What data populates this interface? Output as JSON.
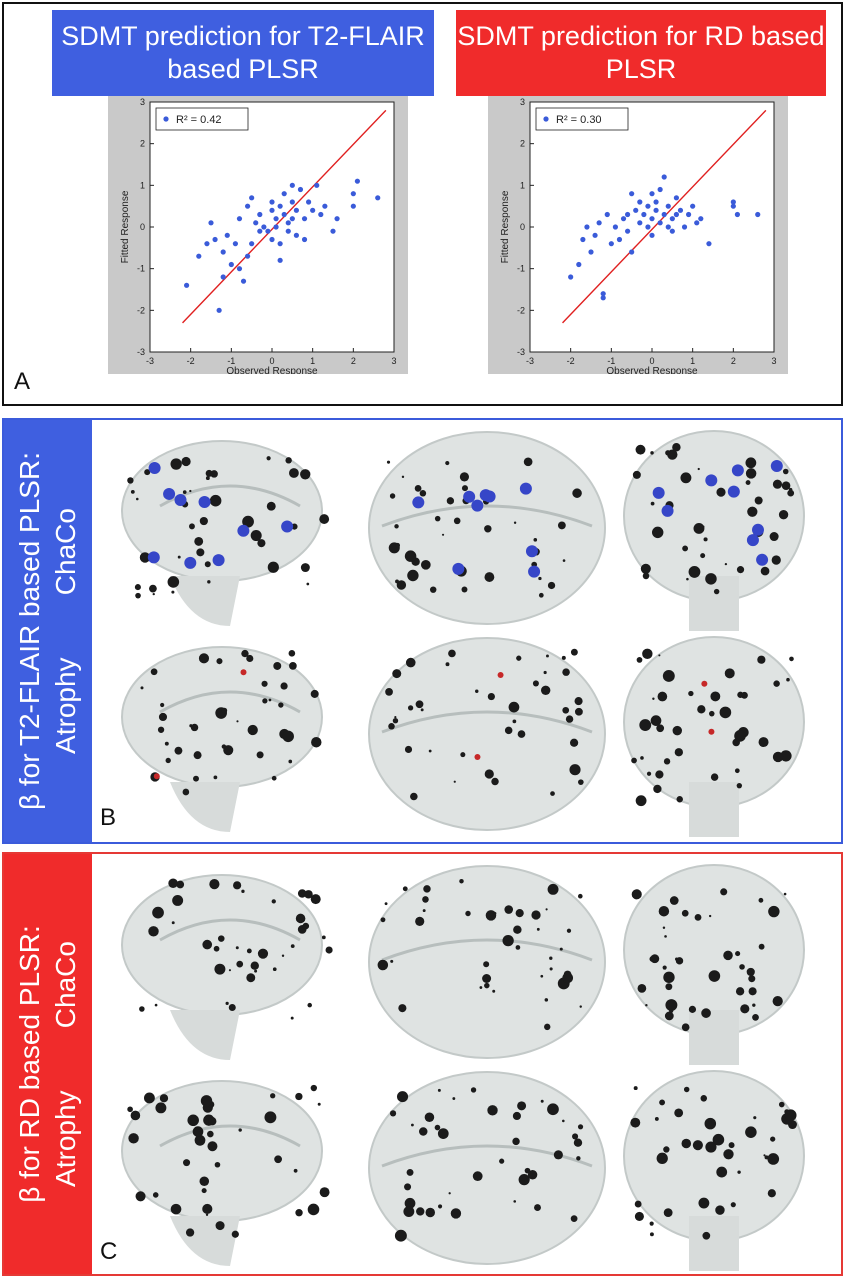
{
  "panel_a": {
    "letter": "A",
    "left_title": "SDMT prediction for T2-FLAIR based PLSR",
    "right_title": "SDMT prediction for RD based PLSR"
  },
  "panel_b": {
    "letter": "B",
    "side_label_line1": "β for T2-FLAIR based PLSR:",
    "side_label_line2": "Atrophy        ChaCo"
  },
  "panel_c": {
    "letter": "C",
    "side_label_line1": "β for RD based PLSR:",
    "side_label_line2": "Atrophy        ChaCo"
  },
  "chart_data": [
    {
      "type": "scatter",
      "title": "SDMT prediction for T2-FLAIR based PLSR",
      "xlabel": "Observed Response",
      "ylabel": "Fitted Response",
      "xlim": [
        -3,
        3
      ],
      "ylim": [
        -3,
        3
      ],
      "xticks": [
        -3,
        -2,
        -1,
        0,
        1,
        2,
        3
      ],
      "yticks": [
        -3,
        -2,
        -1,
        0,
        1,
        2,
        3
      ],
      "legend": "R² = 0.42",
      "legend_position": "top-left",
      "fit_line": {
        "x": [
          -2.2,
          2.8
        ],
        "y": [
          -2.3,
          2.8
        ],
        "color": "#e02020"
      },
      "point_color": "#3a5bd9",
      "points": [
        [
          -2.1,
          -1.4
        ],
        [
          -1.8,
          -0.7
        ],
        [
          -1.6,
          -0.4
        ],
        [
          -1.5,
          0.1
        ],
        [
          -1.4,
          -0.3
        ],
        [
          -1.3,
          -2.0
        ],
        [
          -1.2,
          -1.2
        ],
        [
          -1.2,
          -0.6
        ],
        [
          -1.1,
          -0.2
        ],
        [
          -1.0,
          -0.9
        ],
        [
          -0.9,
          -0.4
        ],
        [
          -0.8,
          0.2
        ],
        [
          -0.7,
          -1.3
        ],
        [
          -0.6,
          -0.7
        ],
        [
          -0.6,
          0.5
        ],
        [
          -0.5,
          0.7
        ],
        [
          -0.5,
          -0.4
        ],
        [
          -0.4,
          0.1
        ],
        [
          -0.3,
          -0.1
        ],
        [
          -0.3,
          0.3
        ],
        [
          -0.2,
          0.0
        ],
        [
          -0.1,
          -0.1
        ],
        [
          0.0,
          0.4
        ],
        [
          0.0,
          -0.3
        ],
        [
          0.0,
          0.6
        ],
        [
          0.1,
          0.2
        ],
        [
          0.1,
          0.0
        ],
        [
          0.2,
          0.5
        ],
        [
          0.2,
          -0.4
        ],
        [
          0.3,
          0.3
        ],
        [
          0.3,
          0.8
        ],
        [
          0.4,
          0.1
        ],
        [
          0.4,
          -0.1
        ],
        [
          0.5,
          0.6
        ],
        [
          0.5,
          1.0
        ],
        [
          0.5,
          0.2
        ],
        [
          0.6,
          0.4
        ],
        [
          0.7,
          0.9
        ],
        [
          0.8,
          0.2
        ],
        [
          0.8,
          -0.3
        ],
        [
          0.9,
          0.6
        ],
        [
          1.0,
          0.4
        ],
        [
          1.1,
          1.0
        ],
        [
          1.2,
          0.3
        ],
        [
          1.3,
          0.5
        ],
        [
          1.5,
          -0.1
        ],
        [
          1.6,
          0.2
        ],
        [
          2.0,
          0.5
        ],
        [
          2.0,
          0.8
        ],
        [
          2.1,
          1.1
        ],
        [
          2.6,
          0.7
        ],
        [
          -0.8,
          -1.0
        ],
        [
          0.2,
          -0.8
        ],
        [
          0.6,
          -0.2
        ]
      ]
    },
    {
      "type": "scatter",
      "title": "SDMT prediction for RD based PLSR",
      "xlabel": "Observed Response",
      "ylabel": "Fitted Response",
      "xlim": [
        -3,
        3
      ],
      "ylim": [
        -3,
        3
      ],
      "xticks": [
        -3,
        -2,
        -1,
        0,
        1,
        2,
        3
      ],
      "yticks": [
        -3,
        -2,
        -1,
        0,
        1,
        2,
        3
      ],
      "legend": "R² = 0.30",
      "legend_position": "top-left",
      "fit_line": {
        "x": [
          -2.2,
          2.8
        ],
        "y": [
          -2.3,
          2.8
        ],
        "color": "#e02020"
      },
      "point_color": "#3a5bd9",
      "points": [
        [
          -2.0,
          -1.2
        ],
        [
          -1.8,
          -0.9
        ],
        [
          -1.7,
          -0.3
        ],
        [
          -1.6,
          0.0
        ],
        [
          -1.5,
          -0.6
        ],
        [
          -1.4,
          -0.2
        ],
        [
          -1.3,
          0.1
        ],
        [
          -1.2,
          -1.6
        ],
        [
          -1.2,
          -1.7
        ],
        [
          -1.1,
          0.3
        ],
        [
          -1.0,
          -0.4
        ],
        [
          -0.9,
          0.0
        ],
        [
          -0.8,
          -0.3
        ],
        [
          -0.7,
          0.2
        ],
        [
          -0.6,
          -0.1
        ],
        [
          -0.5,
          0.8
        ],
        [
          -0.5,
          -0.6
        ],
        [
          -0.4,
          0.4
        ],
        [
          -0.3,
          0.1
        ],
        [
          -0.3,
          0.6
        ],
        [
          -0.2,
          0.3
        ],
        [
          -0.1,
          0.0
        ],
        [
          -0.1,
          0.5
        ],
        [
          0.0,
          0.2
        ],
        [
          0.0,
          -0.2
        ],
        [
          0.1,
          0.4
        ],
        [
          0.1,
          0.6
        ],
        [
          0.2,
          0.1
        ],
        [
          0.2,
          0.9
        ],
        [
          0.3,
          1.2
        ],
        [
          0.3,
          0.3
        ],
        [
          0.4,
          0.0
        ],
        [
          0.4,
          0.5
        ],
        [
          0.5,
          0.2
        ],
        [
          0.5,
          -0.1
        ],
        [
          0.6,
          0.7
        ],
        [
          0.6,
          0.3
        ],
        [
          0.7,
          0.4
        ],
        [
          0.8,
          0.0
        ],
        [
          0.9,
          0.3
        ],
        [
          1.0,
          0.5
        ],
        [
          1.1,
          0.1
        ],
        [
          1.2,
          0.2
        ],
        [
          1.4,
          -0.4
        ],
        [
          2.0,
          0.5
        ],
        [
          2.0,
          0.6
        ],
        [
          2.1,
          0.3
        ],
        [
          2.6,
          0.3
        ],
        [
          -0.6,
          0.3
        ],
        [
          0.0,
          0.8
        ]
      ]
    }
  ]
}
